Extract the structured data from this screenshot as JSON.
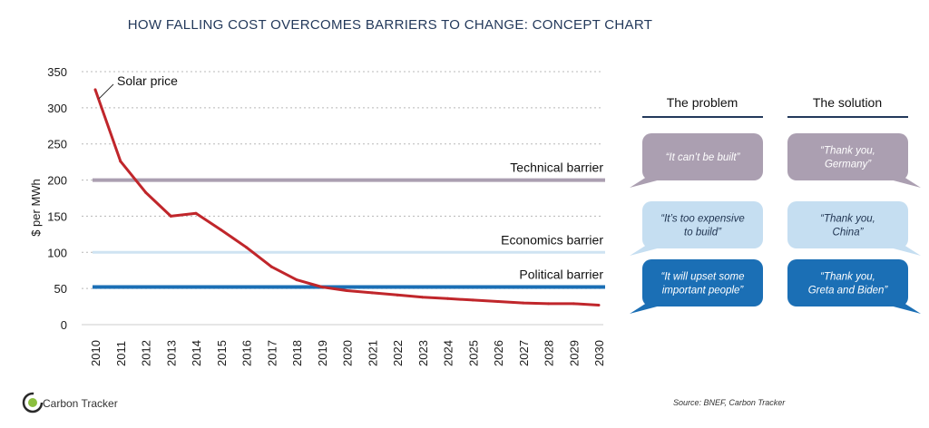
{
  "chart_data": {
    "type": "line",
    "title": "HOW FALLING COST OVERCOMES BARRIERS TO CHANGE: CONCEPT CHART",
    "ylabel": "$ per MWh",
    "xlabel": "",
    "ylim": [
      0,
      350
    ],
    "yticks": [
      0,
      50,
      100,
      150,
      200,
      250,
      300,
      350
    ],
    "x": [
      "2010",
      "2011",
      "2012",
      "2013",
      "2014",
      "2015",
      "2016",
      "2017",
      "2018",
      "2019",
      "2020",
      "2021",
      "2022",
      "2023",
      "2024",
      "2025",
      "2026",
      "2027",
      "2028",
      "2029",
      "2030"
    ],
    "grid": true,
    "series": [
      {
        "name": "Solar price",
        "color": "#c0262b",
        "values": [
          325,
          226,
          183,
          150,
          154,
          131,
          107,
          80,
          62,
          52,
          47,
          44,
          41,
          38,
          36,
          34,
          32,
          30,
          29,
          29,
          27
        ]
      }
    ],
    "barriers": [
      {
        "label": "Technical barrier",
        "value": 200,
        "color": "#ab9fb1"
      },
      {
        "label": "Economics barrier",
        "value": 100,
        "color": "#cfe3f2"
      },
      {
        "label": "Political barrier",
        "value": 52,
        "color": "#1b6fb5"
      }
    ]
  },
  "panel": {
    "problem_header": "The problem",
    "solution_header": "The solution",
    "rows": [
      {
        "problem": [
          "“It can’t be built”"
        ],
        "solution": [
          "“Thank you,",
          "Germany”"
        ],
        "color": "#ab9fb1",
        "text_style": "light"
      },
      {
        "problem": [
          "“It’s too expensive",
          "to build”"
        ],
        "solution": [
          "“Thank you,",
          "China”"
        ],
        "color": "#c5def1",
        "text_style": "dark"
      },
      {
        "problem": [
          "“It will upset some",
          "important people”"
        ],
        "solution": [
          "“Thank you,",
          "Greta and Biden”"
        ],
        "color": "#1b6fb5",
        "text_style": "light"
      }
    ]
  },
  "footer": {
    "source": "Source:   BNEF, Carbon Tracker",
    "logo_text": "Carbon Tracker",
    "logo_initial": "C"
  }
}
